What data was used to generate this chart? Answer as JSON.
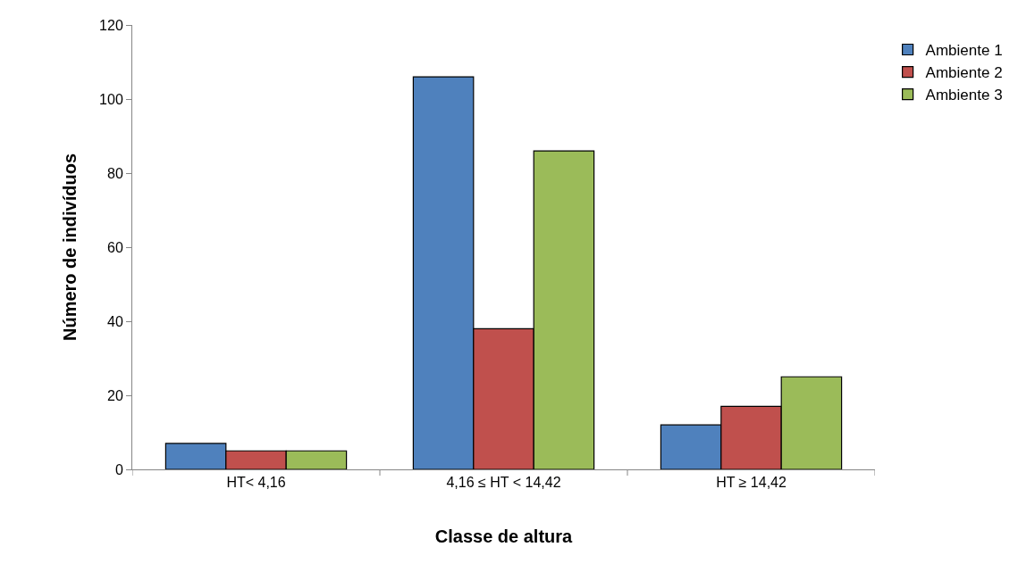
{
  "chart_data": {
    "type": "bar",
    "xlabel": "Classe de altura",
    "ylabel": "Número de indivíduos",
    "categories": [
      "HT< 4,16",
      "4,16 ≤ HT < 14,42",
      "HT ≥ 14,42"
    ],
    "series": [
      {
        "name": "Ambiente 1",
        "color": "#4f81bd",
        "values": [
          7,
          106,
          12
        ]
      },
      {
        "name": "Ambiente 2",
        "color": "#c0504d",
        "values": [
          5,
          38,
          17
        ]
      },
      {
        "name": "Ambiente 3",
        "color": "#9bbb59",
        "values": [
          5,
          86,
          25
        ]
      }
    ],
    "ylim": [
      0,
      120
    ],
    "yticks": [
      0,
      20,
      40,
      60,
      80,
      100,
      120
    ],
    "grid": false,
    "legend": "right"
  }
}
